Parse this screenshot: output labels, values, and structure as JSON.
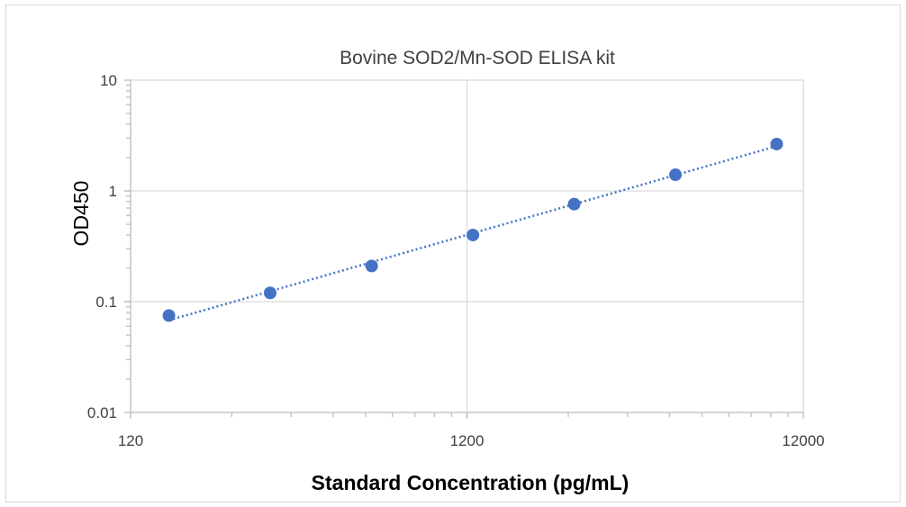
{
  "chart_data": {
    "type": "scatter",
    "title": "Bovine SOD2/Mn-SOD  ELISA kit",
    "xlabel": "Standard Concentration (pg/mL)",
    "ylabel": "OD450",
    "x_scale": "log",
    "y_scale": "log",
    "xlim": [
      120,
      12000
    ],
    "ylim": [
      0.01,
      10
    ],
    "x_ticks": [
      "120",
      "1200",
      "12000"
    ],
    "y_ticks": [
      "10",
      "1",
      "0.1",
      "0.01"
    ],
    "grid": true,
    "trendline": "dotted",
    "colors": {
      "marker": "#4472c4",
      "grid": "#d9d9d9",
      "axis": "#bfbfbf"
    },
    "series": [
      {
        "x": [
          156,
          312,
          625,
          1250,
          2500,
          5000,
          10000
        ],
        "y": [
          0.075,
          0.12,
          0.21,
          0.4,
          0.76,
          1.4,
          2.65
        ]
      }
    ]
  }
}
